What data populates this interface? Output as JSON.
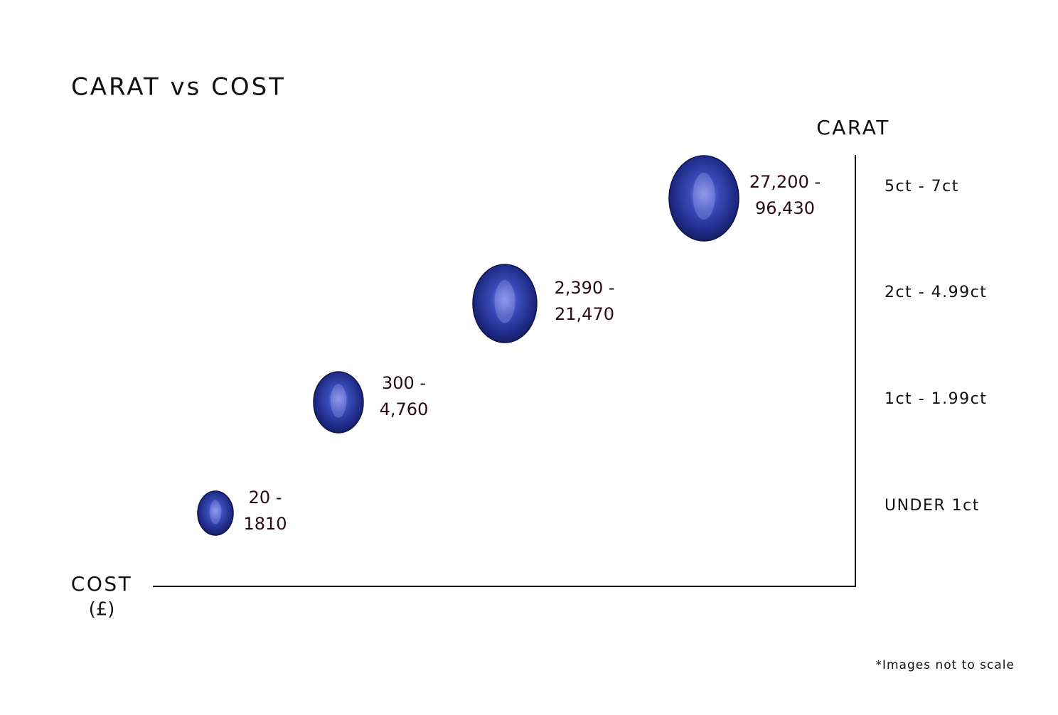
{
  "title": "CARAT vs COST",
  "y_axis_label": "CARAT",
  "x_axis_label": {
    "line1": "COST",
    "line2": "(£)"
  },
  "items": [
    {
      "carat": "UNDER 1ct",
      "cost": [
        "20 -",
        "1810"
      ]
    },
    {
      "carat": "1ct - 1.99ct",
      "cost": [
        "300 -",
        "4,760"
      ]
    },
    {
      "carat": "2ct - 4.99ct",
      "cost": [
        "2,390 -",
        "21,470"
      ]
    },
    {
      "carat": "5ct - 7ct",
      "cost": [
        "27,200 -",
        "96,430"
      ]
    }
  ],
  "footnote": "*Images not to scale"
}
